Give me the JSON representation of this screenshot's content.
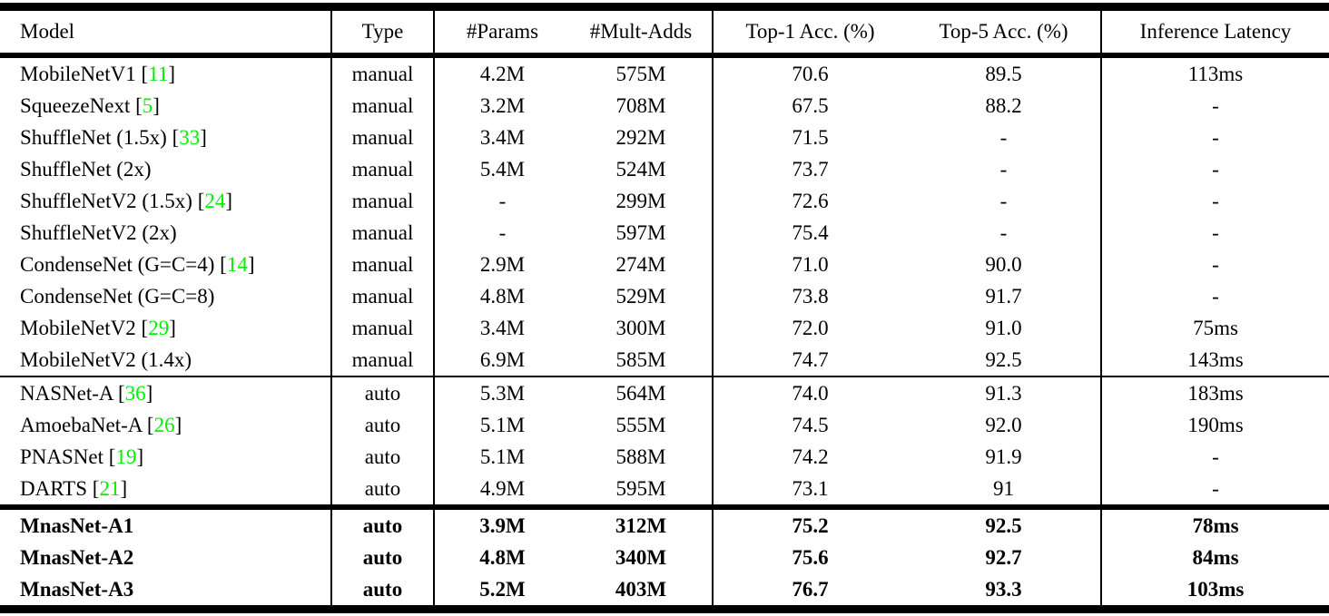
{
  "colors": {
    "citation_green": "#00f000",
    "text": "#000000",
    "rule": "#000000",
    "background": "#ffffff"
  },
  "table": {
    "columns": [
      {
        "label": "Model",
        "align": "left"
      },
      {
        "label": "Type",
        "align": "center"
      },
      {
        "label": "#Params",
        "align": "center"
      },
      {
        "label": "#Mult-Adds",
        "align": "center"
      },
      {
        "label": "Top-1 Acc. (%)",
        "align": "center"
      },
      {
        "label": "Top-5 Acc. (%)",
        "align": "center"
      },
      {
        "label": "Inference Latency",
        "align": "center"
      }
    ],
    "sections": [
      {
        "name": "manual-models",
        "bold": false,
        "rows": [
          {
            "model": "MobileNetV1",
            "cite": "11",
            "type": "manual",
            "params": "4.2M",
            "mult_adds": "575M",
            "top1": "70.6",
            "top5": "89.5",
            "latency": "113ms"
          },
          {
            "model": "SqueezeNext",
            "cite": "5",
            "type": "manual",
            "params": "3.2M",
            "mult_adds": "708M",
            "top1": "67.5",
            "top5": "88.2",
            "latency": "-"
          },
          {
            "model": "ShuffleNet (1.5x)",
            "cite": "33",
            "type": "manual",
            "params": "3.4M",
            "mult_adds": "292M",
            "top1": "71.5",
            "top5": "-",
            "latency": "-"
          },
          {
            "model": "ShuffleNet (2x)",
            "cite": null,
            "type": "manual",
            "params": "5.4M",
            "mult_adds": "524M",
            "top1": "73.7",
            "top5": "-",
            "latency": "-"
          },
          {
            "model": "ShuffleNetV2 (1.5x)",
            "cite": "24",
            "type": "manual",
            "params": "-",
            "mult_adds": "299M",
            "top1": "72.6",
            "top5": "-",
            "latency": "-"
          },
          {
            "model": "ShuffleNetV2 (2x)",
            "cite": null,
            "type": "manual",
            "params": "-",
            "mult_adds": "597M",
            "top1": "75.4",
            "top5": "-",
            "latency": "-"
          },
          {
            "model": "CondenseNet (G=C=4)",
            "cite": "14",
            "type": "manual",
            "params": "2.9M",
            "mult_adds": "274M",
            "top1": "71.0",
            "top5": "90.0",
            "latency": "-"
          },
          {
            "model": "CondenseNet (G=C=8)",
            "cite": null,
            "type": "manual",
            "params": "4.8M",
            "mult_adds": "529M",
            "top1": "73.8",
            "top5": "91.7",
            "latency": "-"
          },
          {
            "model": "MobileNetV2",
            "cite": "29",
            "type": "manual",
            "params": "3.4M",
            "mult_adds": "300M",
            "top1": "72.0",
            "top5": "91.0",
            "latency": "75ms"
          },
          {
            "model": "MobileNetV2 (1.4x)",
            "cite": null,
            "type": "manual",
            "params": "6.9M",
            "mult_adds": "585M",
            "top1": "74.7",
            "top5": "92.5",
            "latency": "143ms"
          }
        ]
      },
      {
        "name": "auto-models",
        "bold": false,
        "rows": [
          {
            "model": "NASNet-A",
            "cite": "36",
            "type": "auto",
            "params": "5.3M",
            "mult_adds": "564M",
            "top1": "74.0",
            "top5": "91.3",
            "latency": "183ms"
          },
          {
            "model": "AmoebaNet-A",
            "cite": "26",
            "type": "auto",
            "params": "5.1M",
            "mult_adds": "555M",
            "top1": "74.5",
            "top5": "92.0",
            "latency": "190ms"
          },
          {
            "model": "PNASNet",
            "cite": "19",
            "type": "auto",
            "params": "5.1M",
            "mult_adds": "588M",
            "top1": "74.2",
            "top5": "91.9",
            "latency": "-"
          },
          {
            "model": "DARTS",
            "cite": "21",
            "type": "auto",
            "params": "4.9M",
            "mult_adds": "595M",
            "top1": "73.1",
            "top5": "91",
            "latency": "-"
          }
        ]
      },
      {
        "name": "mnasnet-models",
        "bold": true,
        "rows": [
          {
            "model": "MnasNet-A1",
            "cite": null,
            "type": "auto",
            "params": "3.9M",
            "mult_adds": "312M",
            "top1": "75.2",
            "top5": "92.5",
            "latency": "78ms"
          },
          {
            "model": "MnasNet-A2",
            "cite": null,
            "type": "auto",
            "params": "4.8M",
            "mult_adds": "340M",
            "top1": "75.6",
            "top5": "92.7",
            "latency": "84ms"
          },
          {
            "model": "MnasNet-A3",
            "cite": null,
            "type": "auto",
            "params": "5.2M",
            "mult_adds": "403M",
            "top1": "76.7",
            "top5": "93.3",
            "latency": "103ms"
          }
        ]
      }
    ]
  },
  "chart_data": {
    "type": "table",
    "title": "",
    "columns": [
      "Model",
      "Type",
      "#Params",
      "#Mult-Adds",
      "Top-1 Acc. (%)",
      "Top-5 Acc. (%)",
      "Inference Latency"
    ],
    "rows": [
      [
        "MobileNetV1 [11]",
        "manual",
        "4.2M",
        "575M",
        "70.6",
        "89.5",
        "113ms"
      ],
      [
        "SqueezeNext [5]",
        "manual",
        "3.2M",
        "708M",
        "67.5",
        "88.2",
        "-"
      ],
      [
        "ShuffleNet (1.5x) [33]",
        "manual",
        "3.4M",
        "292M",
        "71.5",
        "-",
        "-"
      ],
      [
        "ShuffleNet (2x)",
        "manual",
        "5.4M",
        "524M",
        "73.7",
        "-",
        "-"
      ],
      [
        "ShuffleNetV2 (1.5x) [24]",
        "manual",
        "-",
        "299M",
        "72.6",
        "-",
        "-"
      ],
      [
        "ShuffleNetV2 (2x)",
        "manual",
        "-",
        "597M",
        "75.4",
        "-",
        "-"
      ],
      [
        "CondenseNet (G=C=4) [14]",
        "manual",
        "2.9M",
        "274M",
        "71.0",
        "90.0",
        "-"
      ],
      [
        "CondenseNet (G=C=8)",
        "manual",
        "4.8M",
        "529M",
        "73.8",
        "91.7",
        "-"
      ],
      [
        "MobileNetV2 [29]",
        "manual",
        "3.4M",
        "300M",
        "72.0",
        "91.0",
        "75ms"
      ],
      [
        "MobileNetV2 (1.4x)",
        "manual",
        "6.9M",
        "585M",
        "74.7",
        "92.5",
        "143ms"
      ],
      [
        "NASNet-A [36]",
        "auto",
        "5.3M",
        "564M",
        "74.0",
        "91.3",
        "183ms"
      ],
      [
        "AmoebaNet-A [26]",
        "auto",
        "5.1M",
        "555M",
        "74.5",
        "92.0",
        "190ms"
      ],
      [
        "PNASNet [19]",
        "auto",
        "5.1M",
        "588M",
        "74.2",
        "91.9",
        "-"
      ],
      [
        "DARTS [21]",
        "auto",
        "4.9M",
        "595M",
        "73.1",
        "91",
        "-"
      ],
      [
        "MnasNet-A1",
        "auto",
        "3.9M",
        "312M",
        "75.2",
        "92.5",
        "78ms"
      ],
      [
        "MnasNet-A2",
        "auto",
        "4.8M",
        "340M",
        "75.6",
        "92.7",
        "84ms"
      ],
      [
        "MnasNet-A3",
        "auto",
        "5.2M",
        "403M",
        "76.7",
        "93.3",
        "103ms"
      ]
    ]
  }
}
